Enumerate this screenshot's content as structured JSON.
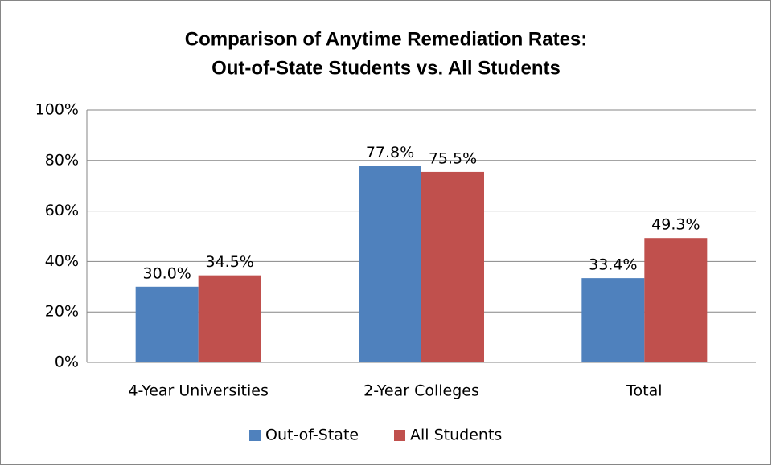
{
  "chart_data": {
    "type": "bar",
    "title": [
      "Comparison of Anytime Remediation Rates:",
      "Out-of-State Students vs. All Students"
    ],
    "categories": [
      "4-Year Universities",
      "2-Year Colleges",
      "Total"
    ],
    "series": [
      {
        "name": "Out-of-State",
        "color": "#4f81bd",
        "values": [
          30.0,
          77.8,
          33.4
        ],
        "value_labels": [
          "30.0%",
          "77.8%",
          "33.4%"
        ]
      },
      {
        "name": "All Students",
        "color": "#c0504d",
        "values": [
          34.5,
          75.5,
          49.3
        ],
        "value_labels": [
          "34.5%",
          "75.5%",
          "49.3%"
        ]
      }
    ],
    "ylim": [
      0,
      100
    ],
    "yticks": [
      {
        "value": 0,
        "label": "0%"
      },
      {
        "value": 20,
        "label": "20%"
      },
      {
        "value": 40,
        "label": "40%"
      },
      {
        "value": 60,
        "label": "60%"
      },
      {
        "value": 80,
        "label": "80%"
      },
      {
        "value": 100,
        "label": "100%"
      }
    ],
    "grid": true,
    "legend": "bottom"
  }
}
